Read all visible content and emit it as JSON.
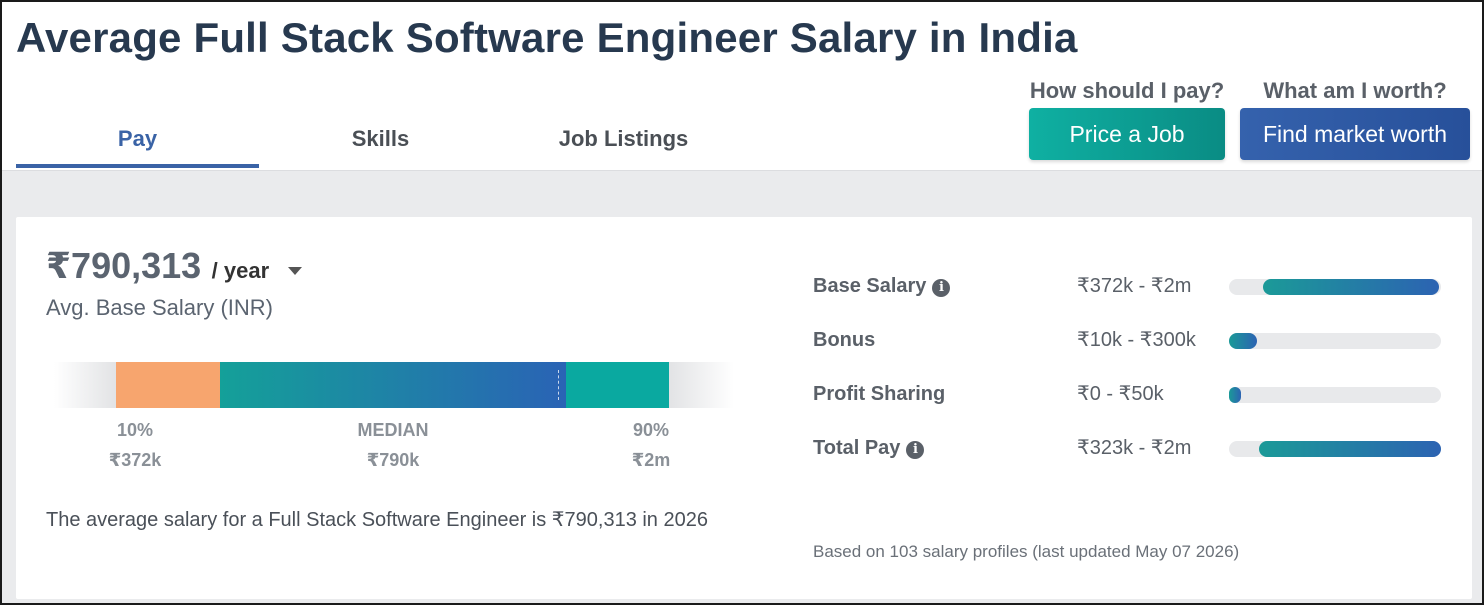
{
  "header": {
    "title": "Average Full Stack Software Engineer Salary in India",
    "tabs": [
      {
        "label": "Pay",
        "active": true
      },
      {
        "label": "Skills",
        "active": false
      },
      {
        "label": "Job Listings",
        "active": false
      }
    ],
    "cta": [
      {
        "question": "How should I pay?",
        "button": "Price a Job",
        "color": "#0a9f94"
      },
      {
        "question": "What am I worth?",
        "button": "Find market worth",
        "color": "#2f5ba8"
      }
    ]
  },
  "salary": {
    "amount": "₹790,313",
    "period": "/ year",
    "label": "Avg. Base Salary (INR)",
    "range": {
      "low_pct": "10%",
      "low_val": "₹372k",
      "median_label": "MEDIAN",
      "median_val": "₹790k",
      "high_pct": "90%",
      "high_val": "₹2m"
    },
    "summary": "The average salary for a Full Stack Software Engineer is ₹790,313 in 2026"
  },
  "compensation": [
    {
      "label": "Base Salary",
      "range": "₹372k - ₹2m",
      "info": true,
      "fill_start": 0.16,
      "fill_end": 0.99
    },
    {
      "label": "Bonus",
      "range": "₹10k - ₹300k",
      "info": false,
      "fill_start": 0.0,
      "fill_end": 0.13
    },
    {
      "label": "Profit Sharing",
      "range": "₹0 - ₹50k",
      "info": false,
      "fill_start": 0.0,
      "fill_end": 0.05
    },
    {
      "label": "Total Pay",
      "range": "₹323k - ₹2m",
      "info": true,
      "fill_start": 0.14,
      "fill_end": 1.0
    }
  ],
  "footer_note": "Based on 103 salary profiles (last updated May 07 2026)",
  "colors": {
    "title": "#27394f",
    "tab_active": "#3a63a6",
    "low_segment": "#f7a56e",
    "high_segment": "#0aa9a0"
  }
}
